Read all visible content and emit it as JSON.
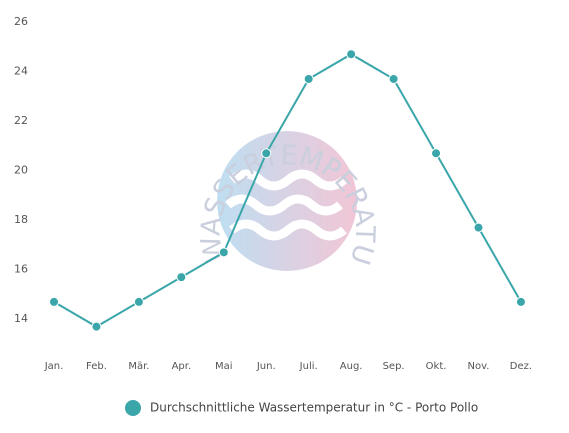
{
  "chart_data": {
    "type": "line",
    "watermark": "WASSERTEMPERATUR.ORG",
    "categories": [
      "Jan.",
      "Feb.",
      "Mär.",
      "Apr.",
      "Mai",
      "Jun.",
      "Juli.",
      "Aug.",
      "Sep.",
      "Okt.",
      "Nov.",
      "Dez."
    ],
    "series": [
      {
        "name": "Durchschnittliche Wassertemperatur in °C - Porto Pollo",
        "color": "#3aa6a9",
        "values": [
          14.7,
          13.7,
          14.7,
          15.7,
          16.7,
          20.7,
          23.7,
          24.7,
          23.7,
          20.7,
          17.7,
          14.7
        ]
      }
    ],
    "ylim": [
      13,
      26
    ],
    "yticks": [
      14,
      16,
      18,
      20,
      22,
      24,
      26
    ],
    "legend": "bottom"
  }
}
